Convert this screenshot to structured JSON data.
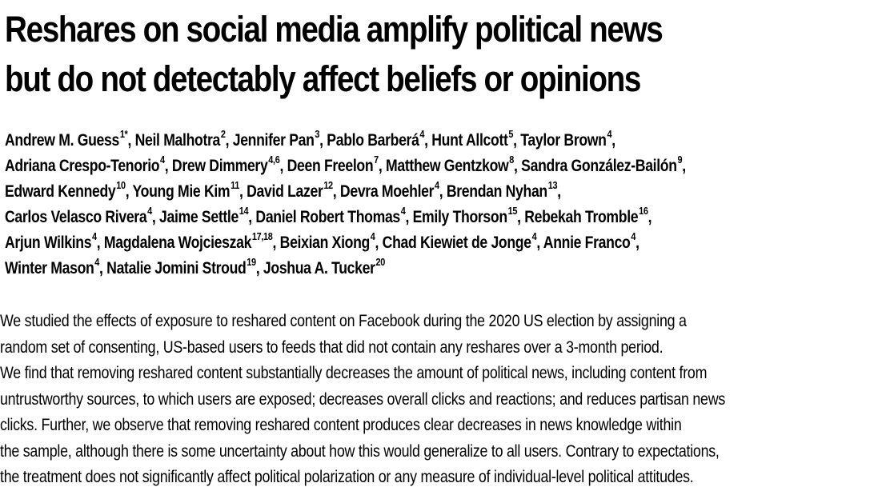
{
  "title_lines": [
    "Reshares on social media amplify political news",
    "but do not detectably affect beliefs or opinions"
  ],
  "author_lines": [
    [
      {
        "name": "Andrew M. Guess",
        "sup": "1*",
        "sep": ", "
      },
      {
        "name": "Neil Malhotra",
        "sup": "2",
        "sep": ", "
      },
      {
        "name": "Jennifer Pan",
        "sup": "3",
        "sep": ", "
      },
      {
        "name": "Pablo Barberá",
        "sup": "4",
        "sep": ", "
      },
      {
        "name": "Hunt Allcott",
        "sup": "5",
        "sep": ", "
      },
      {
        "name": "Taylor Brown",
        "sup": "4",
        "sep": ","
      }
    ],
    [
      {
        "name": "Adriana Crespo-Tenorio",
        "sup": "4",
        "sep": ", "
      },
      {
        "name": "Drew Dimmery",
        "sup": "4,6",
        "sep": ", "
      },
      {
        "name": "Deen Freelon",
        "sup": "7",
        "sep": ", "
      },
      {
        "name": "Matthew Gentzkow",
        "sup": "8",
        "sep": ", "
      },
      {
        "name": "Sandra González-Bailón",
        "sup": "9",
        "sep": ","
      }
    ],
    [
      {
        "name": "Edward Kennedy",
        "sup": "10",
        "sep": ", "
      },
      {
        "name": "Young Mie Kim",
        "sup": "11",
        "sep": ", "
      },
      {
        "name": "David Lazer",
        "sup": "12",
        "sep": ", "
      },
      {
        "name": "Devra Moehler",
        "sup": "4",
        "sep": ", "
      },
      {
        "name": "Brendan Nyhan",
        "sup": "13",
        "sep": ","
      }
    ],
    [
      {
        "name": "Carlos Velasco Rivera",
        "sup": "4",
        "sep": ", "
      },
      {
        "name": "Jaime Settle",
        "sup": "14",
        "sep": ", "
      },
      {
        "name": "Daniel Robert Thomas",
        "sup": "4",
        "sep": ", "
      },
      {
        "name": "Emily Thorson",
        "sup": "15",
        "sep": ", "
      },
      {
        "name": "Rebekah Tromble",
        "sup": "16",
        "sep": ","
      }
    ],
    [
      {
        "name": "Arjun Wilkins",
        "sup": "4",
        "sep": ", "
      },
      {
        "name": "Magdalena Wojcieszak",
        "sup": "17,18",
        "sep": ", "
      },
      {
        "name": "Beixian Xiong",
        "sup": "4",
        "sep": ", "
      },
      {
        "name": "Chad Kiewiet de Jonge",
        "sup": "4",
        "sep": ", "
      },
      {
        "name": "Annie Franco",
        "sup": "4",
        "sep": ","
      }
    ],
    [
      {
        "name": "Winter Mason",
        "sup": "4",
        "sep": ", "
      },
      {
        "name": "Natalie Jomini Stroud",
        "sup": "19",
        "sep": ", "
      },
      {
        "name": "Joshua A. Tucker",
        "sup": "20",
        "sep": ""
      }
    ]
  ],
  "abstract_lines": [
    "We studied the effects of exposure to reshared content on Facebook during the 2020 US election by assigning a",
    "random set of consenting, US-based users to feeds that did not contain any reshares over a 3-month period.",
    "We find that removing reshared content substantially decreases the amount of political news, including content from",
    "untrustworthy sources, to which users are exposed; decreases overall clicks and reactions; and reduces partisan news",
    "clicks. Further, we observe that removing reshared content produces clear decreases in news knowledge within",
    "the sample, although there is some uncertainty about how this would generalize to all users. Contrary to expectations,",
    "the treatment does not significantly affect political polarization or any measure of individual-level political attitudes."
  ]
}
